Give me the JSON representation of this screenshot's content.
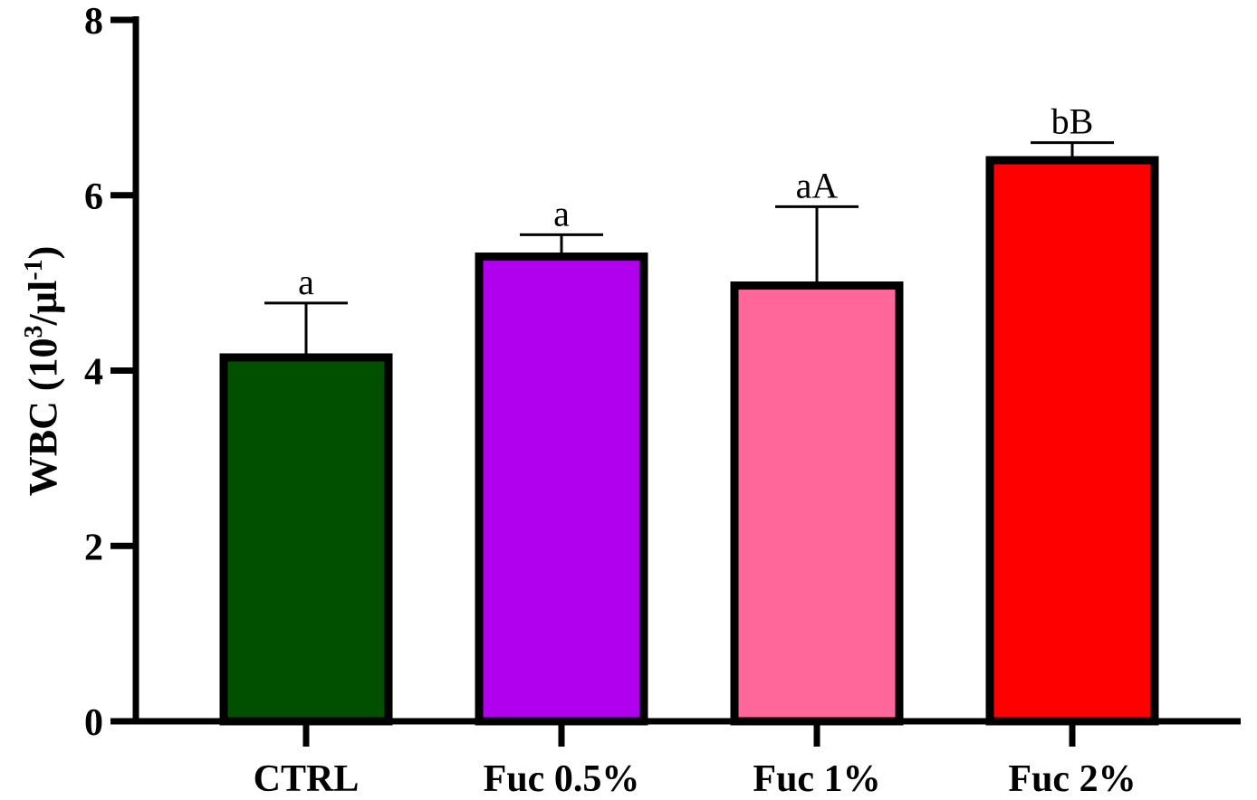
{
  "chart_data": {
    "type": "bar",
    "title": "",
    "xlabel": "",
    "ylabel": {
      "prefix": "WBC (10",
      "sup1": "3",
      "middle": "/µl",
      "sup2": "-1",
      "suffix": ")"
    },
    "ylim": [
      0,
      8
    ],
    "yticks": [
      0,
      2,
      4,
      6,
      8
    ],
    "ytick_labels": [
      "0",
      "2",
      "4",
      "6",
      "8"
    ],
    "categories": [
      "CTRL",
      "Fuc 0.5%",
      "Fuc 1%",
      "Fuc 2%"
    ],
    "values": [
      4.15,
      5.3,
      4.97,
      6.4
    ],
    "error_upper": [
      0.62,
      0.25,
      0.9,
      0.2
    ],
    "significance": [
      "a",
      "a",
      "aA",
      "bB"
    ],
    "colors": [
      "#005000",
      "#b000ee",
      "#ff6699",
      "#ff0000"
    ],
    "grid": false
  }
}
